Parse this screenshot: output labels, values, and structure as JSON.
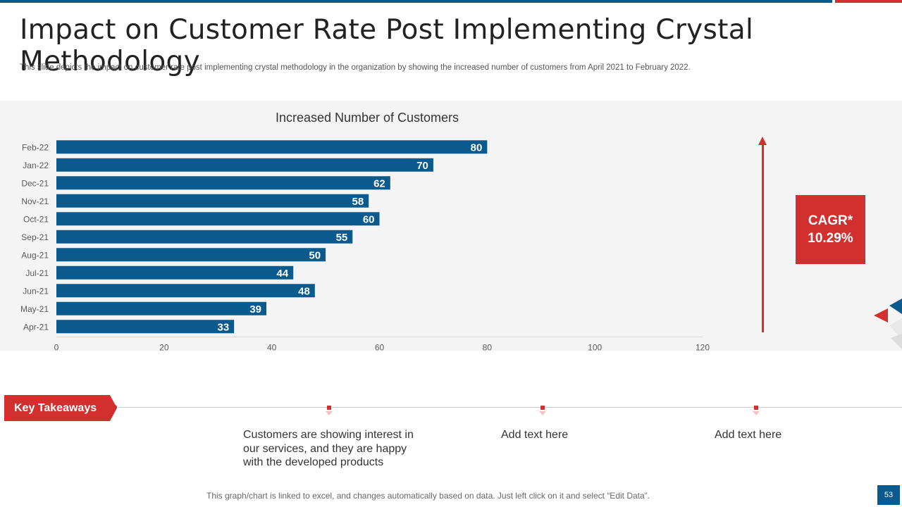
{
  "slide": {
    "title": "Impact on Customer Rate Post Implementing Crystal Methodology",
    "subtitle": "This slide depicts the impact on customer rate post implementing crystal methodology in the organization by showing the increased number of customers from April 2021 to February 2022.",
    "cagr_label": "CAGR*",
    "cagr_value": "10.29%",
    "key_takeaways_label": "Key Takeaways",
    "takeaways": [
      "Customers are showing interest in our services, and they are happy with the developed products",
      "Add text here",
      "Add text here"
    ],
    "footnote": "This graph/chart is linked to excel, and changes automatically based on data. Just left click on it and select “Edit Data”.",
    "page_number": "53"
  },
  "colors": {
    "bar": "#0b5a8e",
    "accent": "#d22f2f",
    "panel": "#f4f4f4"
  },
  "chart_data": {
    "type": "bar",
    "orientation": "horizontal",
    "title": "Increased Number of Customers",
    "categories": [
      "Feb-22",
      "Jan-22",
      "Dec-21",
      "Nov-21",
      "Oct-21",
      "Sep-21",
      "Aug-21",
      "Jul-21",
      "Jun-21",
      "May-21",
      "Apr-21"
    ],
    "values": [
      80,
      70,
      62,
      58,
      60,
      55,
      50,
      44,
      48,
      39,
      33
    ],
    "xlim": [
      0,
      120
    ],
    "xticks": [
      0,
      20,
      40,
      60,
      80,
      100,
      120
    ],
    "grid": false,
    "data_labels": true
  }
}
